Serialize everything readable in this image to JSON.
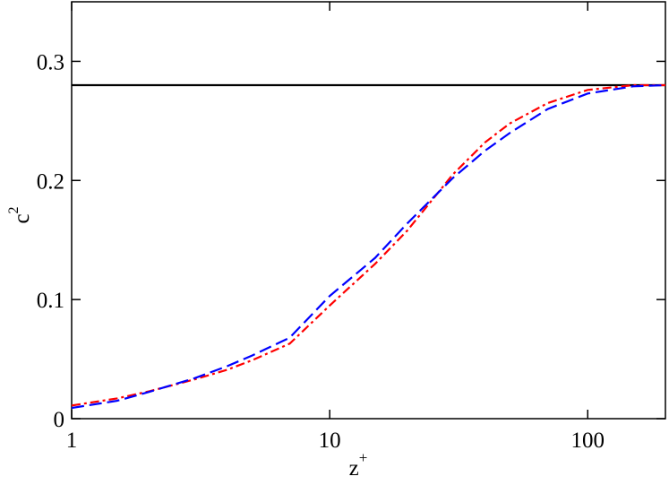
{
  "chart_data": {
    "type": "line",
    "x_label": {
      "text": "z",
      "superscript": "+"
    },
    "y_label": {
      "text": "c",
      "superscript": "2"
    },
    "x": [
      1,
      1.5,
      2,
      3,
      4,
      5,
      7,
      10,
      15,
      20,
      30,
      40,
      50,
      70,
      100,
      150,
      200
    ],
    "series": [
      {
        "color": "#000000",
        "dash": "solid",
        "values": [
          0.28,
          0.28,
          0.28,
          0.28,
          0.28,
          0.28,
          0.28,
          0.28,
          0.28,
          0.28,
          0.28,
          0.28,
          0.28,
          0.28,
          0.28,
          0.28,
          0.28
        ]
      },
      {
        "color": "#ff0000",
        "dash": "dashdot",
        "values": [
          0.011,
          0.017,
          0.023,
          0.033,
          0.041,
          0.049,
          0.063,
          0.095,
          0.13,
          0.158,
          0.205,
          0.232,
          0.248,
          0.265,
          0.276,
          0.28,
          0.28
        ]
      },
      {
        "color": "#0000ff",
        "dash": "dashed",
        "values": [
          0.009,
          0.015,
          0.0225,
          0.034,
          0.044,
          0.053,
          0.068,
          0.103,
          0.135,
          0.164,
          0.202,
          0.225,
          0.24,
          0.26,
          0.273,
          0.279,
          0.28
        ]
      }
    ],
    "xscale": "log",
    "xlim": [
      1,
      200
    ],
    "xticks": [
      1,
      10,
      100
    ],
    "ylim": [
      0,
      0.35
    ],
    "yticks": [
      0,
      0.1,
      0.2,
      0.3
    ]
  }
}
